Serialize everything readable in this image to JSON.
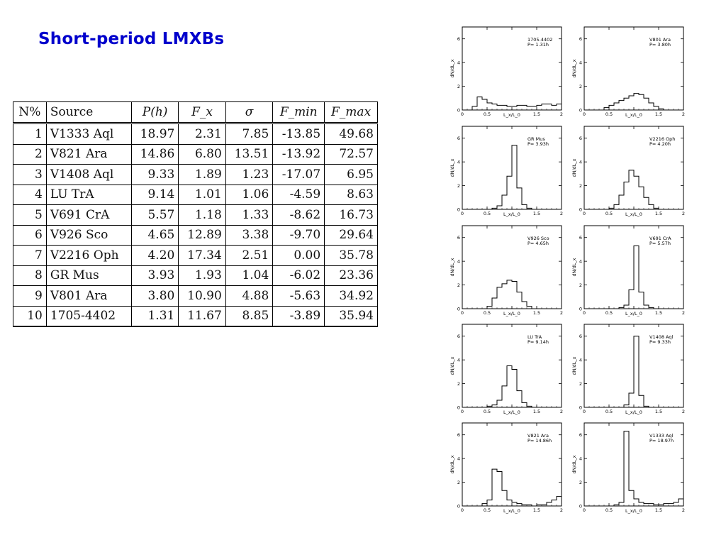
{
  "title": "Short-period LMXBs",
  "table": {
    "headers": [
      "N%",
      "Source",
      "P(h)",
      "F_x",
      "σ",
      "F_min",
      "F_max"
    ],
    "rows": [
      [
        "1",
        "V1333 Aql",
        "18.97",
        "2.31",
        "7.85",
        "-13.85",
        "49.68"
      ],
      [
        "2",
        "V821 Ara",
        "14.86",
        "6.80",
        "13.51",
        "-13.92",
        "72.57"
      ],
      [
        "3",
        "V1408 Aql",
        "9.33",
        "1.89",
        "1.23",
        "-17.07",
        "6.95"
      ],
      [
        "4",
        "LU TrA",
        "9.14",
        "1.01",
        "1.06",
        "-4.59",
        "8.63"
      ],
      [
        "5",
        "V691 CrA",
        "5.57",
        "1.18",
        "1.33",
        "-8.62",
        "16.73"
      ],
      [
        "6",
        "V926 Sco",
        "4.65",
        "12.89",
        "3.38",
        "-9.70",
        "29.64"
      ],
      [
        "7",
        "V2216 Oph",
        "4.20",
        "17.34",
        "2.51",
        "0.00",
        "35.78"
      ],
      [
        "8",
        "GR Mus",
        "3.93",
        "1.93",
        "1.04",
        "-6.02",
        "23.36"
      ],
      [
        "9",
        "V801 Ara",
        "3.80",
        "10.90",
        "4.88",
        "-5.63",
        "34.92"
      ],
      [
        "10",
        "1705-4402",
        "1.31",
        "11.67",
        "8.85",
        "-3.89",
        "35.94"
      ]
    ]
  },
  "chart_data": [
    {
      "type": "histogram",
      "label": "1705-4402",
      "period_label": "P=  1.31h",
      "xlabel": "L_x/L_0",
      "ylabel": "dN/dL_x",
      "xlim": [
        0,
        2
      ],
      "ylim": [
        0,
        7
      ],
      "xticks": [
        "0",
        "0.5",
        "1",
        "1.5",
        "2"
      ],
      "yticks": [
        "0",
        "2",
        "4",
        "6"
      ],
      "bin_width": 0.1,
      "values": [
        0,
        0,
        0.3,
        1.1,
        0.9,
        0.6,
        0.5,
        0.4,
        0.4,
        0.3,
        0.3,
        0.4,
        0.4,
        0.3,
        0.3,
        0.4,
        0.5,
        0.5,
        0.4,
        0.5
      ]
    },
    {
      "type": "histogram",
      "label": "V801 Ara",
      "period_label": "P=  3.80h",
      "xlabel": "L_x/L_0",
      "ylabel": "dN/dL_x",
      "xlim": [
        0,
        2
      ],
      "ylim": [
        0,
        7
      ],
      "xticks": [
        "0",
        "0.5",
        "1",
        "1.5",
        "2"
      ],
      "yticks": [
        "0",
        "2",
        "4",
        "6"
      ],
      "bin_width": 0.1,
      "values": [
        0,
        0,
        0,
        0,
        0.2,
        0.4,
        0.6,
        0.8,
        1.0,
        1.2,
        1.4,
        1.3,
        1.0,
        0.6,
        0.3,
        0.1,
        0,
        0,
        0,
        0
      ]
    },
    {
      "type": "histogram",
      "label": "GR Mus",
      "period_label": "P=  3.93h",
      "xlabel": "L_x/L_0",
      "ylabel": "dN/dL_x",
      "xlim": [
        0,
        2
      ],
      "ylim": [
        0,
        7
      ],
      "xticks": [
        "0",
        "0.5",
        "1",
        "1.5",
        "2"
      ],
      "yticks": [
        "0",
        "2",
        "4",
        "6"
      ],
      "bin_width": 0.1,
      "values": [
        0,
        0,
        0,
        0,
        0,
        0,
        0.1,
        0.3,
        1.2,
        2.8,
        5.4,
        1.8,
        0.4,
        0.1,
        0,
        0,
        0,
        0,
        0,
        0
      ]
    },
    {
      "type": "histogram",
      "label": "V2216 Oph",
      "period_label": "P=  4.20h",
      "xlabel": "L_x/L_0",
      "ylabel": "dN/dL_x",
      "xlim": [
        0,
        2
      ],
      "ylim": [
        0,
        7
      ],
      "xticks": [
        "0",
        "0.5",
        "1",
        "1.5",
        "2"
      ],
      "yticks": [
        "0",
        "2",
        "4",
        "6"
      ],
      "bin_width": 0.1,
      "values": [
        0,
        0,
        0,
        0,
        0,
        0.1,
        0.4,
        1.2,
        2.3,
        3.3,
        2.8,
        1.9,
        1.0,
        0.4,
        0.1,
        0,
        0,
        0,
        0,
        0
      ]
    },
    {
      "type": "histogram",
      "label": "V926 Sco",
      "period_label": "P=  4.65h",
      "xlabel": "L_x/L_0",
      "ylabel": "dN/dL_x",
      "xlim": [
        0,
        2
      ],
      "ylim": [
        0,
        7
      ],
      "xticks": [
        "0",
        "0.5",
        "1",
        "1.5",
        "2"
      ],
      "yticks": [
        "0",
        "2",
        "4",
        "6"
      ],
      "bin_width": 0.1,
      "values": [
        0,
        0,
        0,
        0,
        0,
        0.2,
        0.9,
        1.8,
        2.1,
        2.4,
        2.3,
        1.4,
        0.6,
        0.2,
        0,
        0,
        0,
        0,
        0,
        0
      ]
    },
    {
      "type": "histogram",
      "label": "V691 CrA",
      "period_label": "P=  5.57h",
      "xlabel": "L_x/L_0",
      "ylabel": "dN/dL_x",
      "xlim": [
        0,
        2
      ],
      "ylim": [
        0,
        7
      ],
      "xticks": [
        "0",
        "0.5",
        "1",
        "1.5",
        "2"
      ],
      "yticks": [
        "0",
        "2",
        "4",
        "6"
      ],
      "bin_width": 0.1,
      "values": [
        0,
        0,
        0,
        0,
        0,
        0,
        0,
        0.1,
        0.3,
        1.6,
        5.3,
        1.4,
        0.3,
        0.1,
        0,
        0,
        0,
        0,
        0,
        0
      ]
    },
    {
      "type": "histogram",
      "label": "LU TrA",
      "period_label": "P=  9.14h",
      "xlabel": "L_x/L_0",
      "ylabel": "dN/dL_x",
      "xlim": [
        0,
        2
      ],
      "ylim": [
        0,
        7
      ],
      "xticks": [
        "0",
        "0.5",
        "1",
        "1.5",
        "2"
      ],
      "yticks": [
        "0",
        "2",
        "4",
        "6"
      ],
      "bin_width": 0.1,
      "values": [
        0,
        0,
        0,
        0,
        0,
        0.1,
        0.2,
        0.6,
        1.8,
        3.5,
        3.2,
        1.4,
        0.4,
        0.1,
        0,
        0,
        0,
        0,
        0,
        0
      ]
    },
    {
      "type": "histogram",
      "label": "V1408 Aql",
      "period_label": "P=  9.33h",
      "xlabel": "L_x/L_0",
      "ylabel": "dN/dL_x",
      "xlim": [
        0,
        2
      ],
      "ylim": [
        0,
        7
      ],
      "xticks": [
        "0",
        "0.5",
        "1",
        "1.5",
        "2"
      ],
      "yticks": [
        "0",
        "2",
        "4",
        "6"
      ],
      "bin_width": 0.1,
      "values": [
        0,
        0,
        0,
        0,
        0,
        0,
        0,
        0,
        0.2,
        1.2,
        6.0,
        1.0,
        0.1,
        0,
        0,
        0,
        0,
        0,
        0,
        0
      ]
    },
    {
      "type": "histogram",
      "label": "V821 Ara",
      "period_label": "P= 14.86h",
      "xlabel": "L_x/L_0",
      "ylabel": "dN/dL_x",
      "xlim": [
        0,
        2
      ],
      "ylim": [
        0,
        7
      ],
      "xticks": [
        "0",
        "0.5",
        "1",
        "1.5",
        "2"
      ],
      "yticks": [
        "0",
        "2",
        "4",
        "6"
      ],
      "bin_width": 0.1,
      "values": [
        0,
        0,
        0,
        0,
        0.2,
        0.5,
        3.1,
        2.9,
        1.3,
        0.5,
        0.3,
        0.2,
        0.1,
        0.1,
        0,
        0.1,
        0.1,
        0.3,
        0.5,
        0.8
      ]
    },
    {
      "type": "histogram",
      "label": "V1333 Aql",
      "period_label": "P= 18.97h",
      "xlabel": "L_x/L_0",
      "ylabel": "dN/dL_x",
      "xlim": [
        0,
        2
      ],
      "ylim": [
        0,
        7
      ],
      "xticks": [
        "0",
        "0.5",
        "1",
        "1.5",
        "2"
      ],
      "yticks": [
        "0",
        "2",
        "4",
        "6"
      ],
      "bin_width": 0.1,
      "values": [
        0,
        0,
        0,
        0,
        0,
        0,
        0.1,
        0.3,
        6.3,
        1.3,
        0.6,
        0.3,
        0.2,
        0.2,
        0.1,
        0.1,
        0.2,
        0.2,
        0.3,
        0.6
      ]
    }
  ]
}
